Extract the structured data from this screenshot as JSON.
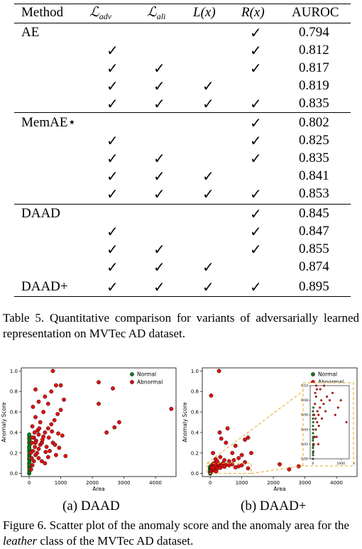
{
  "table": {
    "headers": {
      "method": "Method",
      "adv_main": "ℒ",
      "adv_sub": "adv",
      "ali_main": "ℒ",
      "ali_sub": "ali",
      "lx": "L(x)",
      "rx": "R(x)",
      "auroc": "AUROC"
    },
    "check_glyph": "✓",
    "rows": [
      {
        "method": "AE",
        "adv": false,
        "ali": false,
        "lx": false,
        "rx": true,
        "auroc": "0.794"
      },
      {
        "method": "",
        "adv": true,
        "ali": false,
        "lx": false,
        "rx": true,
        "auroc": "0.812"
      },
      {
        "method": "",
        "adv": true,
        "ali": true,
        "lx": false,
        "rx": true,
        "auroc": "0.817"
      },
      {
        "method": "",
        "adv": true,
        "ali": true,
        "lx": true,
        "rx": false,
        "auroc": "0.819"
      },
      {
        "method": "",
        "adv": true,
        "ali": true,
        "lx": true,
        "rx": true,
        "auroc": "0.835"
      },
      {
        "method": "MemAE⋆",
        "adv": false,
        "ali": false,
        "lx": false,
        "rx": true,
        "auroc": "0.802"
      },
      {
        "method": "",
        "adv": true,
        "ali": false,
        "lx": false,
        "rx": true,
        "auroc": "0.825"
      },
      {
        "method": "",
        "adv": true,
        "ali": true,
        "lx": false,
        "rx": true,
        "auroc": "0.835"
      },
      {
        "method": "",
        "adv": true,
        "ali": true,
        "lx": true,
        "rx": false,
        "auroc": "0.841"
      },
      {
        "method": "",
        "adv": true,
        "ali": true,
        "lx": true,
        "rx": true,
        "auroc": "0.853"
      },
      {
        "method": "DAAD",
        "adv": false,
        "ali": false,
        "lx": false,
        "rx": true,
        "auroc": "0.845"
      },
      {
        "method": "",
        "adv": true,
        "ali": false,
        "lx": false,
        "rx": true,
        "auroc": "0.847"
      },
      {
        "method": "",
        "adv": true,
        "ali": true,
        "lx": false,
        "rx": true,
        "auroc": "0.855"
      },
      {
        "method": "",
        "adv": true,
        "ali": true,
        "lx": true,
        "rx": false,
        "auroc": "0.874"
      },
      {
        "method": "DAAD+",
        "adv": true,
        "ali": true,
        "lx": true,
        "rx": true,
        "auroc": "0.895"
      }
    ],
    "caption": "Table 5. Quantitative comparison for variants of adversarially learned representation on MVTec AD dataset."
  },
  "figure": {
    "caption_prefix": "Figure 6. Scatter plot of the anomaly score and the anomaly area for the ",
    "caption_italic": "leather",
    "caption_suffix": " class of the MVTec AD dataset.",
    "panel_a_label": "(a) DAAD",
    "panel_b_label": "(b) DAAD+"
  },
  "chart_data": [
    {
      "type": "scatter",
      "title": "",
      "xlabel": "Area",
      "ylabel": "Anomaly Score",
      "xlim": [
        -250,
        4650
      ],
      "ylim": [
        -0.03,
        1.03
      ],
      "xticks": [
        0,
        1000,
        2000,
        3000,
        4000
      ],
      "yticks": [
        0.0,
        0.2,
        0.4,
        0.6,
        0.8,
        1.0
      ],
      "legend_position": "top-right",
      "colors": {
        "Normal": "#1a7a1a",
        "Abnormal": "#dd1111"
      },
      "series": [
        {
          "name": "Normal",
          "points": [
            [
              0,
              0.0
            ],
            [
              5,
              0.02
            ],
            [
              10,
              0.04
            ],
            [
              0,
              0.06
            ],
            [
              8,
              0.08
            ],
            [
              0,
              0.1
            ],
            [
              12,
              0.12
            ],
            [
              0,
              0.14
            ],
            [
              6,
              0.16
            ],
            [
              0,
              0.18
            ],
            [
              10,
              0.2
            ],
            [
              0,
              0.22
            ],
            [
              5,
              0.24
            ],
            [
              0,
              0.26
            ],
            [
              14,
              0.28
            ],
            [
              0,
              0.3
            ],
            [
              8,
              0.32
            ],
            [
              0,
              0.34
            ],
            [
              4,
              0.36
            ],
            [
              0,
              0.38
            ],
            [
              3,
              0.09
            ],
            [
              9,
              0.15
            ],
            [
              2,
              0.25
            ]
          ]
        },
        {
          "name": "Abnormal",
          "points": [
            [
              60,
              0.04
            ],
            [
              100,
              0.08
            ],
            [
              150,
              0.12
            ],
            [
              80,
              0.15
            ],
            [
              200,
              0.18
            ],
            [
              250,
              0.2
            ],
            [
              120,
              0.22
            ],
            [
              300,
              0.24
            ],
            [
              180,
              0.26
            ],
            [
              350,
              0.28
            ],
            [
              90,
              0.3
            ],
            [
              400,
              0.3
            ],
            [
              220,
              0.32
            ],
            [
              150,
              0.35
            ],
            [
              450,
              0.36
            ],
            [
              300,
              0.38
            ],
            [
              500,
              0.4
            ],
            [
              270,
              0.42
            ],
            [
              600,
              0.44
            ],
            [
              100,
              0.46
            ],
            [
              350,
              0.5
            ],
            [
              700,
              0.48
            ],
            [
              800,
              0.52
            ],
            [
              200,
              0.55
            ],
            [
              900,
              0.58
            ],
            [
              450,
              0.6
            ],
            [
              1000,
              0.62
            ],
            [
              120,
              0.65
            ],
            [
              600,
              0.68
            ],
            [
              300,
              0.7
            ],
            [
              1100,
              0.72
            ],
            [
              500,
              0.75
            ],
            [
              700,
              0.8
            ],
            [
              200,
              0.82
            ],
            [
              850,
              0.86
            ],
            [
              1000,
              0.86
            ],
            [
              750,
              1.0
            ],
            [
              400,
              0.3
            ],
            [
              550,
              0.26
            ],
            [
              650,
              0.22
            ],
            [
              750,
              0.3
            ],
            [
              850,
              0.18
            ],
            [
              950,
              0.25
            ],
            [
              1050,
              0.37
            ],
            [
              1150,
              0.17
            ],
            [
              300,
              0.15
            ],
            [
              400,
              0.12
            ],
            [
              500,
              0.1
            ],
            [
              600,
              0.16
            ],
            [
              200,
              0.3
            ],
            [
              100,
              0.35
            ],
            [
              50,
              0.2
            ],
            [
              170,
              0.4
            ],
            [
              320,
              0.44
            ],
            [
              420,
              0.33
            ],
            [
              520,
              0.21
            ],
            [
              620,
              0.35
            ],
            [
              720,
              0.41
            ],
            [
              820,
              0.28
            ],
            [
              920,
              0.39
            ],
            [
              2200,
              0.89
            ],
            [
              2650,
              0.83
            ],
            [
              2200,
              0.68
            ],
            [
              2850,
              0.5
            ],
            [
              2700,
              0.45
            ],
            [
              2450,
              0.4
            ],
            [
              4500,
              0.63
            ]
          ]
        }
      ]
    },
    {
      "type": "scatter",
      "title": "",
      "xlabel": "Area",
      "ylabel": "Anomaly Score",
      "xlim": [
        -250,
        4650
      ],
      "ylim": [
        -0.03,
        1.03
      ],
      "xticks": [
        0,
        1000,
        2000,
        3000,
        4000
      ],
      "yticks": [
        0.0,
        0.2,
        0.4,
        0.6,
        0.8,
        1.0
      ],
      "legend_position": "top-right",
      "colors": {
        "Normal": "#1a7a1a",
        "Abnormal": "#dd1111"
      },
      "inset": {
        "xlim": [
          -100,
          1300
        ],
        "ylim": [
          0,
          0.1
        ],
        "xticks": [
          0,
          1000
        ],
        "yticks": [
          0.0,
          0.02,
          0.04,
          0.06,
          0.08,
          0.1
        ]
      },
      "series": [
        {
          "name": "Normal",
          "points": [
            [
              0,
              0.0
            ],
            [
              5,
              0.005
            ],
            [
              10,
              0.01
            ],
            [
              0,
              0.015
            ],
            [
              8,
              0.02
            ],
            [
              0,
              0.025
            ],
            [
              12,
              0.03
            ],
            [
              0,
              0.035
            ],
            [
              6,
              0.04
            ],
            [
              0,
              0.045
            ],
            [
              10,
              0.05
            ],
            [
              0,
              0.055
            ],
            [
              5,
              0.06
            ],
            [
              0,
              0.065
            ],
            [
              14,
              0.07
            ],
            [
              0,
              0.008
            ],
            [
              8,
              0.018
            ],
            [
              3,
              0.028
            ]
          ]
        },
        {
          "name": "Abnormal",
          "points": [
            [
              30,
              0.02
            ],
            [
              60,
              0.03
            ],
            [
              100,
              0.04
            ],
            [
              150,
              0.05
            ],
            [
              200,
              0.06
            ],
            [
              250,
              0.07
            ],
            [
              300,
              0.08
            ],
            [
              80,
              0.09
            ],
            [
              120,
              0.1
            ],
            [
              400,
              0.1
            ],
            [
              500,
              0.085
            ],
            [
              700,
              0.09
            ],
            [
              900,
              0.07
            ],
            [
              1200,
              0.05
            ],
            [
              40,
              0.06
            ],
            [
              70,
              0.075
            ],
            [
              110,
              0.085
            ],
            [
              160,
              0.065
            ],
            [
              210,
              0.045
            ],
            [
              260,
              0.095
            ],
            [
              320,
              0.055
            ],
            [
              380,
              0.075
            ],
            [
              450,
              0.065
            ],
            [
              600,
              0.08
            ],
            [
              800,
              0.06
            ],
            [
              1000,
              0.08
            ],
            [
              130,
              0.03
            ],
            [
              190,
              0.02
            ],
            [
              90,
              0.055
            ],
            [
              140,
              0.095
            ],
            [
              170,
              0.14
            ],
            [
              320,
              0.16
            ],
            [
              450,
              0.13
            ],
            [
              600,
              0.12
            ],
            [
              750,
              0.13
            ],
            [
              900,
              0.15
            ],
            [
              1000,
              0.18
            ],
            [
              1100,
              0.11
            ],
            [
              220,
              0.12
            ],
            [
              90,
              0.2
            ],
            [
              30,
              0.76
            ],
            [
              280,
              1.0
            ],
            [
              300,
              0.4
            ],
            [
              550,
              0.44
            ],
            [
              1100,
              0.33
            ],
            [
              1200,
              0.35
            ],
            [
              1300,
              0.2
            ],
            [
              700,
              0.2
            ],
            [
              800,
              0.27
            ],
            [
              500,
              0.3
            ],
            [
              350,
              0.34
            ],
            [
              2200,
              0.09
            ],
            [
              2800,
              0.07
            ],
            [
              3500,
              0.1
            ],
            [
              4500,
              0.1
            ],
            [
              2500,
              0.04
            ]
          ]
        }
      ]
    }
  ]
}
